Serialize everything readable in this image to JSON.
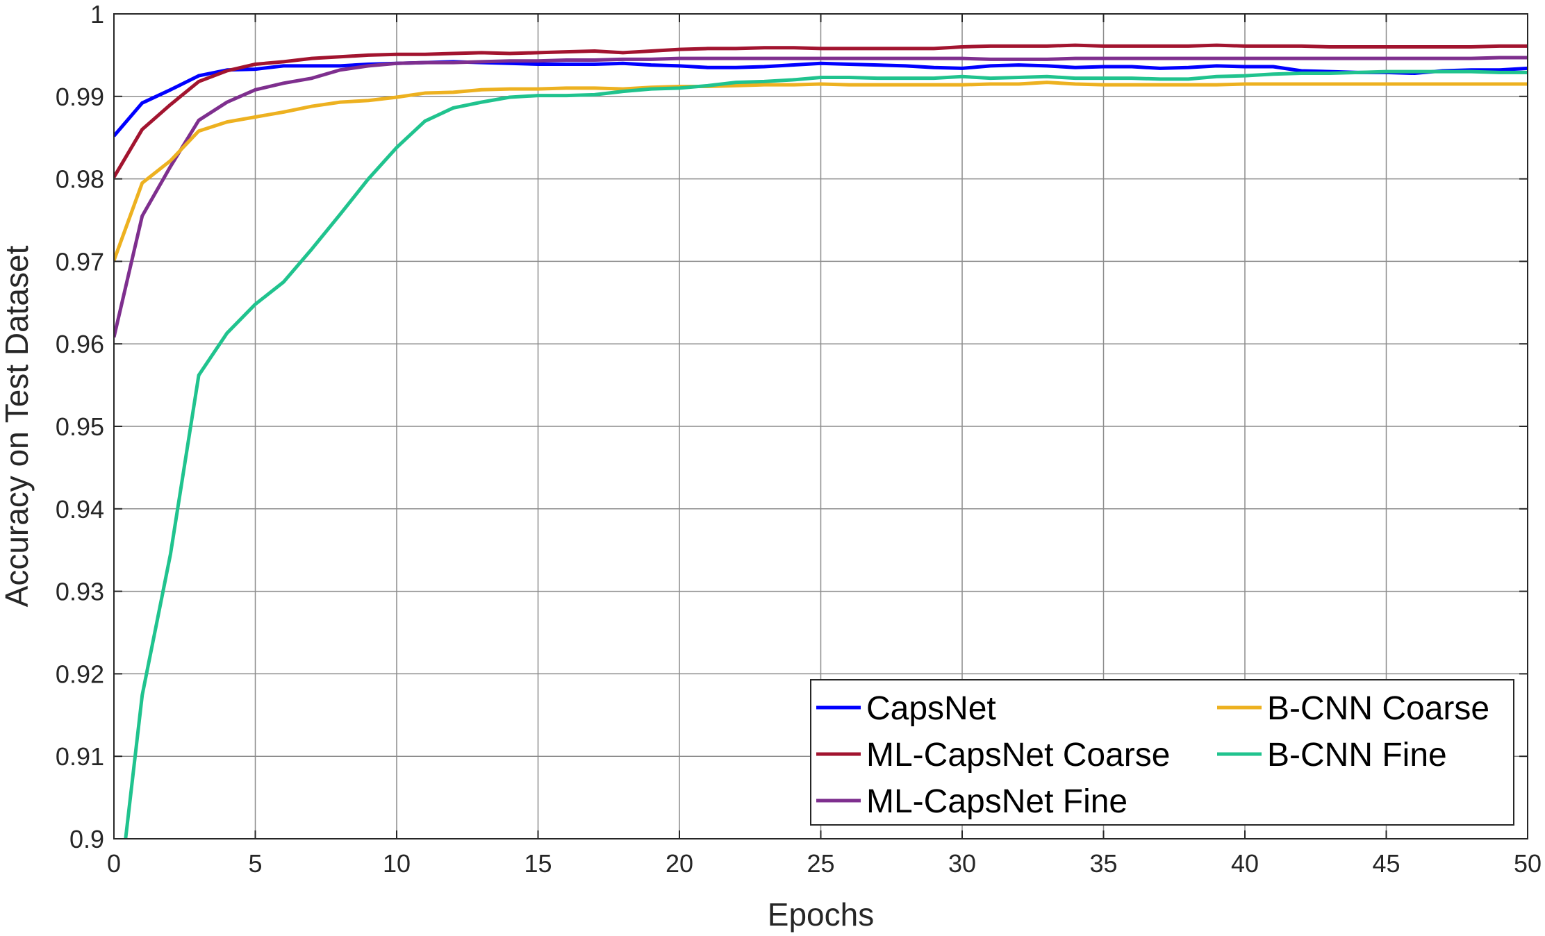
{
  "chart_data": {
    "type": "line",
    "title": "",
    "xlabel": "Epochs",
    "ylabel": "Accuracy on Test Dataset",
    "xlim": [
      0,
      50
    ],
    "ylim": [
      0.9,
      1.0
    ],
    "grid": true,
    "legend_position": "bottom-right",
    "x_ticks": [
      "0",
      "5",
      "10",
      "15",
      "20",
      "25",
      "30",
      "35",
      "40",
      "45",
      "50"
    ],
    "y_ticks": [
      "0.9",
      "0.91",
      "0.92",
      "0.93",
      "0.94",
      "0.95",
      "0.96",
      "0.97",
      "0.98",
      "0.99",
      "1"
    ],
    "x": [
      0,
      1,
      2,
      3,
      4,
      5,
      6,
      7,
      8,
      9,
      10,
      11,
      12,
      13,
      14,
      15,
      16,
      17,
      18,
      19,
      20,
      21,
      22,
      23,
      24,
      25,
      26,
      27,
      28,
      29,
      30,
      31,
      32,
      33,
      34,
      35,
      36,
      37,
      38,
      39,
      40,
      41,
      42,
      43,
      44,
      45,
      46,
      47,
      48,
      49,
      50
    ],
    "series": [
      {
        "name": "CapsNet",
        "color": "#0000ff",
        "values": [
          0.9852,
          0.9892,
          0.9908,
          0.9925,
          0.9932,
          0.9933,
          0.9937,
          0.9937,
          0.9937,
          0.9939,
          0.994,
          0.9941,
          0.9942,
          0.9941,
          0.994,
          0.9939,
          0.9939,
          0.9939,
          0.994,
          0.9938,
          0.9937,
          0.9935,
          0.9935,
          0.9936,
          0.9938,
          0.994,
          0.9939,
          0.9938,
          0.9937,
          0.9935,
          0.9934,
          0.9937,
          0.9938,
          0.9937,
          0.9935,
          0.9936,
          0.9936,
          0.9934,
          0.9935,
          0.9937,
          0.9936,
          0.9936,
          0.9931,
          0.993,
          0.9929,
          0.9929,
          0.9928,
          0.9931,
          0.9932,
          0.9932,
          0.9934
        ]
      },
      {
        "name": "ML-CapsNet Coarse",
        "color": "#a2142f",
        "values": [
          0.9802,
          0.986,
          0.989,
          0.9918,
          0.9931,
          0.9939,
          0.9942,
          0.9946,
          0.9948,
          0.995,
          0.9951,
          0.9951,
          0.9952,
          0.9953,
          0.9952,
          0.9953,
          0.9954,
          0.9955,
          0.9953,
          0.9955,
          0.9957,
          0.9958,
          0.9958,
          0.9959,
          0.9959,
          0.9958,
          0.9958,
          0.9958,
          0.9958,
          0.9958,
          0.996,
          0.9961,
          0.9961,
          0.9961,
          0.9962,
          0.9961,
          0.9961,
          0.9961,
          0.9961,
          0.9962,
          0.9961,
          0.9961,
          0.9961,
          0.996,
          0.996,
          0.996,
          0.996,
          0.996,
          0.996,
          0.9961,
          0.9961
        ]
      },
      {
        "name": "ML-CapsNet Fine",
        "color": "#7e2f8e",
        "values": [
          0.9608,
          0.9755,
          0.9815,
          0.9871,
          0.9893,
          0.9908,
          0.9916,
          0.9922,
          0.9932,
          0.9937,
          0.994,
          0.9941,
          0.9941,
          0.9942,
          0.9943,
          0.9943,
          0.9944,
          0.9944,
          0.9945,
          0.9945,
          0.9946,
          0.9946,
          0.9946,
          0.9946,
          0.9946,
          0.9946,
          0.9946,
          0.9946,
          0.9946,
          0.9946,
          0.9946,
          0.9945,
          0.9945,
          0.9945,
          0.9946,
          0.9946,
          0.9946,
          0.9946,
          0.9946,
          0.9946,
          0.9946,
          0.9946,
          0.9946,
          0.9946,
          0.9946,
          0.9946,
          0.9946,
          0.9946,
          0.9946,
          0.9947,
          0.9947
        ]
      },
      {
        "name": "B-CNN Coarse",
        "color": "#edb120",
        "values": [
          0.9701,
          0.9795,
          0.9822,
          0.9858,
          0.9869,
          0.9875,
          0.9881,
          0.9888,
          0.9893,
          0.9895,
          0.9899,
          0.9904,
          0.9905,
          0.9908,
          0.9909,
          0.9909,
          0.991,
          0.991,
          0.9909,
          0.9911,
          0.9912,
          0.9912,
          0.9913,
          0.9914,
          0.9914,
          0.9915,
          0.9914,
          0.9914,
          0.9914,
          0.9914,
          0.9914,
          0.9915,
          0.9915,
          0.9917,
          0.9915,
          0.9914,
          0.9914,
          0.9914,
          0.9914,
          0.9914,
          0.9915,
          0.9915,
          0.9915,
          0.9915,
          0.9915,
          0.9915,
          0.9915,
          0.9915,
          0.9915,
          0.9915,
          0.9915
        ]
      },
      {
        "name": "B-CNN Fine",
        "color": "#20c38e",
        "values": [
          0.8878,
          0.9174,
          0.9345,
          0.9562,
          0.9613,
          0.9648,
          0.9675,
          0.9715,
          0.9757,
          0.98,
          0.9838,
          0.987,
          0.9886,
          0.9893,
          0.9899,
          0.9901,
          0.9901,
          0.9902,
          0.9906,
          0.9909,
          0.991,
          0.9913,
          0.9917,
          0.9918,
          0.992,
          0.9923,
          0.9923,
          0.9922,
          0.9922,
          0.9922,
          0.9924,
          0.9922,
          0.9923,
          0.9924,
          0.9922,
          0.9922,
          0.9922,
          0.9921,
          0.9921,
          0.9924,
          0.9925,
          0.9927,
          0.9928,
          0.9928,
          0.9929,
          0.993,
          0.993,
          0.993,
          0.993,
          0.9929,
          0.9929
        ]
      }
    ]
  }
}
